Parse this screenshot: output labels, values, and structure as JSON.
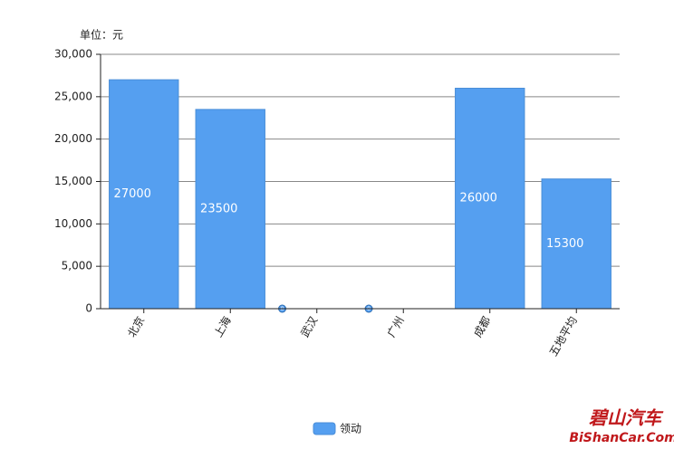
{
  "chart_data": {
    "type": "bar",
    "unit_label": "单位：元",
    "categories": [
      "北京",
      "上海",
      "武汉",
      "广州",
      "成都",
      "五地平均"
    ],
    "series": [
      {
        "name": "领动",
        "color": "#559ff0",
        "values": [
          27000,
          23500,
          0,
          0,
          26000,
          15300
        ]
      }
    ],
    "ylim": [
      0,
      30000
    ],
    "yticks": [
      0,
      {
        "value": 5000,
        "label": "5,000"
      },
      {
        "value": 10000,
        "label": "10,000"
      },
      {
        "value": 15000,
        "label": "15,000"
      },
      {
        "value": 20000,
        "label": "20,000"
      },
      {
        "value": 25000,
        "label": "25,000"
      },
      {
        "value": 30000,
        "label": "30,000"
      }
    ],
    "grid": true,
    "legend": "bottom"
  },
  "watermark": {
    "name": "碧山汽车",
    "site": "BiShanCar.Com"
  }
}
